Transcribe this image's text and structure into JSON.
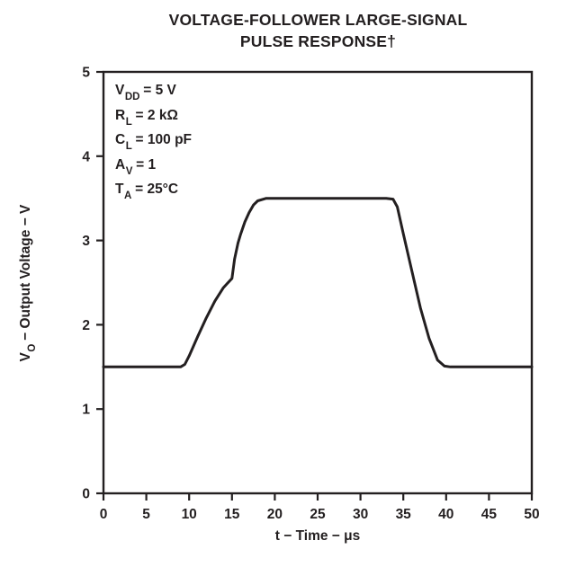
{
  "title": {
    "line1": "VOLTAGE-FOLLOWER LARGE-SIGNAL",
    "line2": "PULSE RESPONSE†"
  },
  "chart_data": {
    "type": "line",
    "title": "VOLTAGE-FOLLOWER LARGE-SIGNAL PULSE RESPONSE†",
    "xlabel": "t − Time − μs",
    "ylabel_parts": {
      "base": "V",
      "sub": "O",
      "rest": " − Output Voltage − V"
    },
    "xlim": [
      0,
      50
    ],
    "ylim": [
      0,
      5
    ],
    "xticks": [
      0,
      5,
      10,
      15,
      20,
      25,
      30,
      35,
      40,
      45,
      50
    ],
    "yticks": [
      0,
      1,
      2,
      3,
      4,
      5
    ],
    "grid": false,
    "legend": "none",
    "axis_color": "#231f20",
    "line_color": "#231f20",
    "points": [
      [
        0,
        1.5
      ],
      [
        9,
        1.5
      ],
      [
        9.5,
        1.53
      ],
      [
        10,
        1.63
      ],
      [
        11,
        1.86
      ],
      [
        12,
        2.08
      ],
      [
        13,
        2.28
      ],
      [
        14,
        2.44
      ],
      [
        15,
        2.55
      ],
      [
        15.3,
        2.78
      ],
      [
        15.7,
        2.97
      ],
      [
        16,
        3.07
      ],
      [
        16.5,
        3.22
      ],
      [
        17,
        3.33
      ],
      [
        17.5,
        3.42
      ],
      [
        18,
        3.47
      ],
      [
        19,
        3.5
      ],
      [
        33,
        3.5
      ],
      [
        33.8,
        3.49
      ],
      [
        34.3,
        3.4
      ],
      [
        35,
        3.08
      ],
      [
        36,
        2.64
      ],
      [
        37,
        2.2
      ],
      [
        38,
        1.84
      ],
      [
        39,
        1.58
      ],
      [
        39.8,
        1.51
      ],
      [
        40.5,
        1.5
      ],
      [
        50,
        1.5
      ]
    ],
    "annotations": [
      {
        "base": "V",
        "sub": "DD",
        "rest": " = 5 V"
      },
      {
        "base": "R",
        "sub": "L",
        "rest": " = 2 kΩ"
      },
      {
        "base": "C",
        "sub": "L",
        "rest": " = 100 pF"
      },
      {
        "base": "A",
        "sub": "V",
        "rest": " = 1"
      },
      {
        "base": "T",
        "sub": "A",
        "rest": " = 25°C"
      }
    ]
  }
}
